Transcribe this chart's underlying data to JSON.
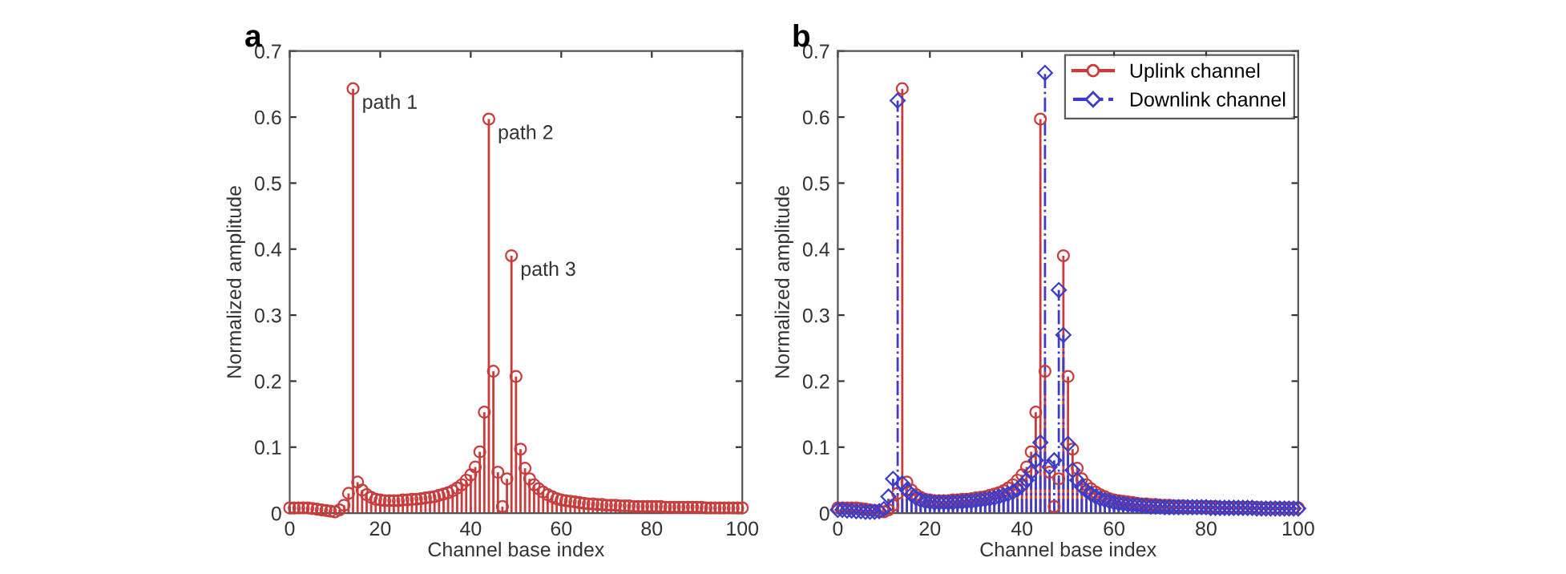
{
  "chart_data": [
    {
      "type": "lollipop",
      "title": "a",
      "xlabel": "Channel base index",
      "ylabel": "Normalized amplitude",
      "x": [
        0,
        1,
        2,
        3,
        4,
        5,
        6,
        7,
        8,
        9,
        10,
        11,
        12,
        13,
        14,
        15,
        16,
        17,
        18,
        19,
        20,
        21,
        22,
        23,
        24,
        25,
        26,
        27,
        28,
        29,
        30,
        31,
        32,
        33,
        34,
        35,
        36,
        37,
        38,
        39,
        40,
        41,
        42,
        43,
        44,
        45,
        46,
        47,
        48,
        49,
        50,
        51,
        52,
        53,
        54,
        55,
        56,
        57,
        58,
        59,
        60,
        61,
        62,
        63,
        64,
        65,
        66,
        67,
        68,
        69,
        70,
        71,
        72,
        73,
        74,
        75,
        76,
        77,
        78,
        79,
        80,
        81,
        82,
        83,
        84,
        85,
        86,
        87,
        88,
        89,
        90,
        91,
        92,
        93,
        94,
        95,
        96,
        97,
        98,
        99,
        100
      ],
      "series": [
        {
          "color": "#c83c3c",
          "marker": "circle",
          "line_style": "solid",
          "values": [
            0.008,
            0.008,
            0.008,
            0.008,
            0.008,
            0.007,
            0.006,
            0.005,
            0.004,
            0.003,
            0.002,
            0.005,
            0.012,
            0.03,
            0.643,
            0.047,
            0.035,
            0.028,
            0.024,
            0.021,
            0.02,
            0.019,
            0.019,
            0.019,
            0.019,
            0.02,
            0.02,
            0.021,
            0.021,
            0.022,
            0.023,
            0.024,
            0.025,
            0.027,
            0.029,
            0.031,
            0.034,
            0.038,
            0.043,
            0.05,
            0.058,
            0.07,
            0.093,
            0.153,
            0.597,
            0.215,
            0.062,
            0.01,
            0.052,
            0.39,
            0.207,
            0.097,
            0.068,
            0.052,
            0.043,
            0.037,
            0.032,
            0.028,
            0.025,
            0.022,
            0.02,
            0.019,
            0.018,
            0.017,
            0.016,
            0.015,
            0.014,
            0.014,
            0.013,
            0.013,
            0.012,
            0.012,
            0.012,
            0.011,
            0.011,
            0.011,
            0.01,
            0.01,
            0.01,
            0.01,
            0.01,
            0.01,
            0.01,
            0.009,
            0.009,
            0.009,
            0.009,
            0.009,
            0.009,
            0.009,
            0.009,
            0.009,
            0.008,
            0.008,
            0.008,
            0.008,
            0.008,
            0.008,
            0.008,
            0.008,
            0.008
          ]
        }
      ],
      "annotations": [
        {
          "text": "path 1",
          "x": 14,
          "y": 0.643
        },
        {
          "text": "path 2",
          "x": 44,
          "y": 0.597
        },
        {
          "text": "path 3",
          "x": 49,
          "y": 0.39
        }
      ],
      "xlim": [
        0,
        100
      ],
      "xticks": [
        0,
        20,
        40,
        60,
        80,
        100
      ],
      "ylim": [
        0,
        0.7
      ],
      "yticks": [
        0,
        0.1,
        0.2,
        0.3,
        0.4,
        0.5,
        0.6,
        0.7
      ],
      "grid": false,
      "legend": false
    },
    {
      "type": "lollipop",
      "title": "b",
      "xlabel": "Channel base index",
      "ylabel": "Normalized amplitude",
      "x": [
        0,
        1,
        2,
        3,
        4,
        5,
        6,
        7,
        8,
        9,
        10,
        11,
        12,
        13,
        14,
        15,
        16,
        17,
        18,
        19,
        20,
        21,
        22,
        23,
        24,
        25,
        26,
        27,
        28,
        29,
        30,
        31,
        32,
        33,
        34,
        35,
        36,
        37,
        38,
        39,
        40,
        41,
        42,
        43,
        44,
        45,
        46,
        47,
        48,
        49,
        50,
        51,
        52,
        53,
        54,
        55,
        56,
        57,
        58,
        59,
        60,
        61,
        62,
        63,
        64,
        65,
        66,
        67,
        68,
        69,
        70,
        71,
        72,
        73,
        74,
        75,
        76,
        77,
        78,
        79,
        80,
        81,
        82,
        83,
        84,
        85,
        86,
        87,
        88,
        89,
        90,
        91,
        92,
        93,
        94,
        95,
        96,
        97,
        98,
        99,
        100
      ],
      "series": [
        {
          "name": "Uplink channel",
          "color": "#c83c3c",
          "marker": "circle",
          "line_style": "solid",
          "values": [
            0.008,
            0.008,
            0.008,
            0.008,
            0.008,
            0.007,
            0.006,
            0.005,
            0.004,
            0.003,
            0.002,
            0.005,
            0.012,
            0.03,
            0.643,
            0.047,
            0.035,
            0.028,
            0.024,
            0.021,
            0.02,
            0.019,
            0.019,
            0.019,
            0.019,
            0.02,
            0.02,
            0.021,
            0.021,
            0.022,
            0.023,
            0.024,
            0.025,
            0.027,
            0.029,
            0.031,
            0.034,
            0.038,
            0.043,
            0.05,
            0.058,
            0.07,
            0.093,
            0.153,
            0.597,
            0.215,
            0.062,
            0.01,
            0.052,
            0.39,
            0.207,
            0.097,
            0.068,
            0.052,
            0.043,
            0.037,
            0.032,
            0.028,
            0.025,
            0.022,
            0.02,
            0.019,
            0.018,
            0.017,
            0.016,
            0.015,
            0.014,
            0.014,
            0.013,
            0.013,
            0.012,
            0.012,
            0.012,
            0.011,
            0.011,
            0.011,
            0.01,
            0.01,
            0.01,
            0.01,
            0.01,
            0.01,
            0.01,
            0.009,
            0.009,
            0.009,
            0.009,
            0.009,
            0.009,
            0.009,
            0.009,
            0.009,
            0.008,
            0.008,
            0.008,
            0.008,
            0.008,
            0.008,
            0.008,
            0.008,
            0.008
          ]
        },
        {
          "name": "Downlink channel",
          "color": "#3c3cc8",
          "marker": "diamond",
          "line_style": "dashdot",
          "values": [
            0.005,
            0.005,
            0.004,
            0.004,
            0.003,
            0.003,
            0.002,
            0.002,
            0.002,
            0.003,
            0.006,
            0.025,
            0.052,
            0.625,
            0.045,
            0.035,
            0.028,
            0.023,
            0.02,
            0.018,
            0.017,
            0.016,
            0.016,
            0.016,
            0.016,
            0.016,
            0.017,
            0.017,
            0.018,
            0.018,
            0.019,
            0.02,
            0.021,
            0.022,
            0.023,
            0.025,
            0.027,
            0.029,
            0.032,
            0.036,
            0.042,
            0.05,
            0.062,
            0.08,
            0.107,
            0.667,
            0.07,
            0.08,
            0.338,
            0.27,
            0.105,
            0.065,
            0.05,
            0.04,
            0.034,
            0.029,
            0.025,
            0.022,
            0.02,
            0.018,
            0.016,
            0.015,
            0.014,
            0.013,
            0.012,
            0.012,
            0.011,
            0.011,
            0.01,
            0.01,
            0.01,
            0.009,
            0.009,
            0.009,
            0.009,
            0.009,
            0.009,
            0.009,
            0.009,
            0.009,
            0.009,
            0.008,
            0.008,
            0.008,
            0.008,
            0.008,
            0.008,
            0.008,
            0.008,
            0.008,
            0.008,
            0.007,
            0.007,
            0.007,
            0.007,
            0.007,
            0.007,
            0.007,
            0.007,
            0.007,
            0.007
          ]
        }
      ],
      "xlim": [
        0,
        100
      ],
      "xticks": [
        0,
        20,
        40,
        60,
        80,
        100
      ],
      "ylim": [
        0,
        0.7
      ],
      "yticks": [
        0,
        0.1,
        0.2,
        0.3,
        0.4,
        0.5,
        0.6,
        0.7
      ],
      "grid": false,
      "legend": "top right"
    }
  ]
}
